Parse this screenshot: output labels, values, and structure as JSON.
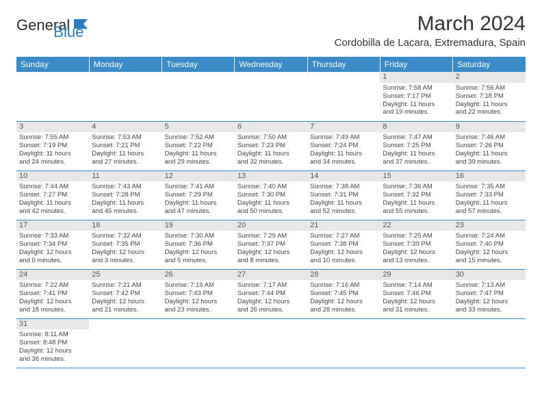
{
  "logo": {
    "text1": "General",
    "text2": "Blue"
  },
  "title": "March 2024",
  "location": "Cordobilla de Lacara, Extremadura, Spain",
  "colors": {
    "header_bg": "#3b8bc9",
    "header_fg": "#ffffff",
    "daynum_bg": "#e8e8e8",
    "border": "#3b8bc9"
  },
  "day_headers": [
    "Sunday",
    "Monday",
    "Tuesday",
    "Wednesday",
    "Thursday",
    "Friday",
    "Saturday"
  ],
  "weeks": [
    [
      null,
      null,
      null,
      null,
      null,
      {
        "n": "1",
        "sr": "Sunrise: 7:58 AM",
        "ss": "Sunset: 7:17 PM",
        "d1": "Daylight: 11 hours",
        "d2": "and 19 minutes."
      },
      {
        "n": "2",
        "sr": "Sunrise: 7:56 AM",
        "ss": "Sunset: 7:18 PM",
        "d1": "Daylight: 11 hours",
        "d2": "and 22 minutes."
      }
    ],
    [
      {
        "n": "3",
        "sr": "Sunrise: 7:55 AM",
        "ss": "Sunset: 7:19 PM",
        "d1": "Daylight: 11 hours",
        "d2": "and 24 minutes."
      },
      {
        "n": "4",
        "sr": "Sunrise: 7:53 AM",
        "ss": "Sunset: 7:21 PM",
        "d1": "Daylight: 11 hours",
        "d2": "and 27 minutes."
      },
      {
        "n": "5",
        "sr": "Sunrise: 7:52 AM",
        "ss": "Sunset: 7:22 PM",
        "d1": "Daylight: 11 hours",
        "d2": "and 29 minutes."
      },
      {
        "n": "6",
        "sr": "Sunrise: 7:50 AM",
        "ss": "Sunset: 7:23 PM",
        "d1": "Daylight: 11 hours",
        "d2": "and 32 minutes."
      },
      {
        "n": "7",
        "sr": "Sunrise: 7:49 AM",
        "ss": "Sunset: 7:24 PM",
        "d1": "Daylight: 11 hours",
        "d2": "and 34 minutes."
      },
      {
        "n": "8",
        "sr": "Sunrise: 7:47 AM",
        "ss": "Sunset: 7:25 PM",
        "d1": "Daylight: 11 hours",
        "d2": "and 37 minutes."
      },
      {
        "n": "9",
        "sr": "Sunrise: 7:46 AM",
        "ss": "Sunset: 7:26 PM",
        "d1": "Daylight: 11 hours",
        "d2": "and 39 minutes."
      }
    ],
    [
      {
        "n": "10",
        "sr": "Sunrise: 7:44 AM",
        "ss": "Sunset: 7:27 PM",
        "d1": "Daylight: 11 hours",
        "d2": "and 42 minutes."
      },
      {
        "n": "11",
        "sr": "Sunrise: 7:43 AM",
        "ss": "Sunset: 7:28 PM",
        "d1": "Daylight: 11 hours",
        "d2": "and 45 minutes."
      },
      {
        "n": "12",
        "sr": "Sunrise: 7:41 AM",
        "ss": "Sunset: 7:29 PM",
        "d1": "Daylight: 11 hours",
        "d2": "and 47 minutes."
      },
      {
        "n": "13",
        "sr": "Sunrise: 7:40 AM",
        "ss": "Sunset: 7:30 PM",
        "d1": "Daylight: 11 hours",
        "d2": "and 50 minutes."
      },
      {
        "n": "14",
        "sr": "Sunrise: 7:38 AM",
        "ss": "Sunset: 7:31 PM",
        "d1": "Daylight: 11 hours",
        "d2": "and 52 minutes."
      },
      {
        "n": "15",
        "sr": "Sunrise: 7:36 AM",
        "ss": "Sunset: 7:32 PM",
        "d1": "Daylight: 11 hours",
        "d2": "and 55 minutes."
      },
      {
        "n": "16",
        "sr": "Sunrise: 7:35 AM",
        "ss": "Sunset: 7:33 PM",
        "d1": "Daylight: 11 hours",
        "d2": "and 57 minutes."
      }
    ],
    [
      {
        "n": "17",
        "sr": "Sunrise: 7:33 AM",
        "ss": "Sunset: 7:34 PM",
        "d1": "Daylight: 12 hours",
        "d2": "and 0 minutes."
      },
      {
        "n": "18",
        "sr": "Sunrise: 7:32 AM",
        "ss": "Sunset: 7:35 PM",
        "d1": "Daylight: 12 hours",
        "d2": "and 3 minutes."
      },
      {
        "n": "19",
        "sr": "Sunrise: 7:30 AM",
        "ss": "Sunset: 7:36 PM",
        "d1": "Daylight: 12 hours",
        "d2": "and 5 minutes."
      },
      {
        "n": "20",
        "sr": "Sunrise: 7:29 AM",
        "ss": "Sunset: 7:37 PM",
        "d1": "Daylight: 12 hours",
        "d2": "and 8 minutes."
      },
      {
        "n": "21",
        "sr": "Sunrise: 7:27 AM",
        "ss": "Sunset: 7:38 PM",
        "d1": "Daylight: 12 hours",
        "d2": "and 10 minutes."
      },
      {
        "n": "22",
        "sr": "Sunrise: 7:25 AM",
        "ss": "Sunset: 7:39 PM",
        "d1": "Daylight: 12 hours",
        "d2": "and 13 minutes."
      },
      {
        "n": "23",
        "sr": "Sunrise: 7:24 AM",
        "ss": "Sunset: 7:40 PM",
        "d1": "Daylight: 12 hours",
        "d2": "and 15 minutes."
      }
    ],
    [
      {
        "n": "24",
        "sr": "Sunrise: 7:22 AM",
        "ss": "Sunset: 7:41 PM",
        "d1": "Daylight: 12 hours",
        "d2": "and 18 minutes."
      },
      {
        "n": "25",
        "sr": "Sunrise: 7:21 AM",
        "ss": "Sunset: 7:42 PM",
        "d1": "Daylight: 12 hours",
        "d2": "and 21 minutes."
      },
      {
        "n": "26",
        "sr": "Sunrise: 7:19 AM",
        "ss": "Sunset: 7:43 PM",
        "d1": "Daylight: 12 hours",
        "d2": "and 23 minutes."
      },
      {
        "n": "27",
        "sr": "Sunrise: 7:17 AM",
        "ss": "Sunset: 7:44 PM",
        "d1": "Daylight: 12 hours",
        "d2": "and 26 minutes."
      },
      {
        "n": "28",
        "sr": "Sunrise: 7:16 AM",
        "ss": "Sunset: 7:45 PM",
        "d1": "Daylight: 12 hours",
        "d2": "and 28 minutes."
      },
      {
        "n": "29",
        "sr": "Sunrise: 7:14 AM",
        "ss": "Sunset: 7:46 PM",
        "d1": "Daylight: 12 hours",
        "d2": "and 31 minutes."
      },
      {
        "n": "30",
        "sr": "Sunrise: 7:13 AM",
        "ss": "Sunset: 7:47 PM",
        "d1": "Daylight: 12 hours",
        "d2": "and 33 minutes."
      }
    ],
    [
      {
        "n": "31",
        "sr": "Sunrise: 8:11 AM",
        "ss": "Sunset: 8:48 PM",
        "d1": "Daylight: 12 hours",
        "d2": "and 36 minutes."
      },
      null,
      null,
      null,
      null,
      null,
      null
    ]
  ]
}
